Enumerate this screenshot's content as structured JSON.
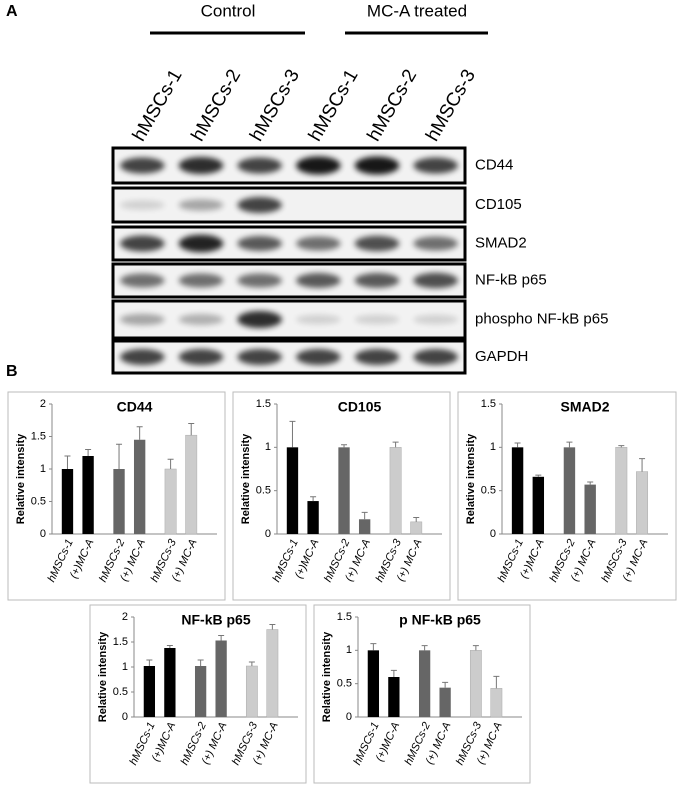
{
  "panel_a": {
    "label": "A",
    "groups": [
      "Control",
      "MC-A treated"
    ],
    "lanes": [
      "hMSCs-1",
      "hMSCs-2",
      "hMSCs-3",
      "hMSCs-1",
      "hMSCs-2",
      "hMSCs-3"
    ],
    "blots": [
      "CD44",
      "CD105",
      "SMAD2",
      "NF-kB p65",
      "phospho NF-kB p65",
      "GAPDH"
    ]
  },
  "panel_b_label": "B",
  "chart_data": [
    {
      "type": "bar",
      "title": "CD44",
      "y_label": "Relative intensity",
      "categories": [
        "hMSCs-1",
        "(+)MC-A",
        "hMSCs-2",
        "(+) MC-A",
        "hMSCs-3",
        "(+) MC-A"
      ],
      "values": [
        1,
        1.2,
        1,
        1.45,
        1,
        1.52
      ],
      "errors": [
        0.2,
        0.1,
        0.38,
        0.2,
        0.15,
        0.18
      ],
      "colors": [
        "#000000",
        "#000000",
        "#666666",
        "#666666",
        "#cccccc",
        "#cccccc"
      ],
      "ylim": [
        0,
        2
      ],
      "yticks": [
        0,
        0.5,
        1,
        1.5,
        2
      ]
    },
    {
      "type": "bar",
      "title": "CD105",
      "y_label": "Relative intensity",
      "categories": [
        "hMSCs-1",
        "(+)MC-A",
        "hMSCs-2",
        "(+) MC-A",
        "hMSCs-3",
        "(+) MC-A"
      ],
      "values": [
        1,
        0.38,
        1,
        0.17,
        1,
        0.14
      ],
      "errors": [
        0.3,
        0.05,
        0.03,
        0.08,
        0.06,
        0.05
      ],
      "colors": [
        "#000000",
        "#000000",
        "#666666",
        "#666666",
        "#cccccc",
        "#cccccc"
      ],
      "ylim": [
        0,
        1.5
      ],
      "yticks": [
        0,
        0.5,
        1,
        1.5
      ]
    },
    {
      "type": "bar",
      "title": "SMAD2",
      "y_label": "Relative intensity",
      "categories": [
        "hMSCs-1",
        "(+)MC-A",
        "hMSCs-2",
        "(+) MC-A",
        "hMSCs-3",
        "(+) MC-A"
      ],
      "values": [
        1,
        0.66,
        1,
        0.57,
        1,
        0.72
      ],
      "errors": [
        0.05,
        0.02,
        0.06,
        0.03,
        0.02,
        0.15
      ],
      "colors": [
        "#000000",
        "#000000",
        "#666666",
        "#666666",
        "#cccccc",
        "#cccccc"
      ],
      "ylim": [
        0,
        1.5
      ],
      "yticks": [
        0,
        0.5,
        1,
        1.5
      ]
    },
    {
      "type": "bar",
      "title": "NF-kB p65",
      "y_label": "Relative intensity",
      "categories": [
        "hMSCs-1",
        "(+)MC-A",
        "hMSCs-2",
        "(+) MC-A",
        "hMSCs-3",
        "(+) MC-A"
      ],
      "values": [
        1.02,
        1.38,
        1.02,
        1.53,
        1.02,
        1.75
      ],
      "errors": [
        0.12,
        0.05,
        0.12,
        0.1,
        0.08,
        0.1
      ],
      "colors": [
        "#000000",
        "#000000",
        "#666666",
        "#666666",
        "#cccccc",
        "#cccccc"
      ],
      "ylim": [
        0,
        2
      ],
      "yticks": [
        0,
        0.5,
        1,
        1.5,
        2
      ]
    },
    {
      "type": "bar",
      "title": "p NF-kB p65",
      "y_label": "Relative intensity",
      "categories": [
        "hMSCs-1",
        "(+)MC-A",
        "hMSCs-2",
        "(+) MC-A",
        "hMSCs-3",
        "(+) MC-A"
      ],
      "values": [
        1,
        0.6,
        1,
        0.44,
        1,
        0.43
      ],
      "errors": [
        0.1,
        0.1,
        0.07,
        0.08,
        0.07,
        0.18
      ],
      "colors": [
        "#000000",
        "#000000",
        "#666666",
        "#666666",
        "#cccccc",
        "#cccccc"
      ],
      "ylim": [
        0,
        1.5
      ],
      "yticks": [
        0,
        0.5,
        1,
        1.5
      ]
    }
  ]
}
